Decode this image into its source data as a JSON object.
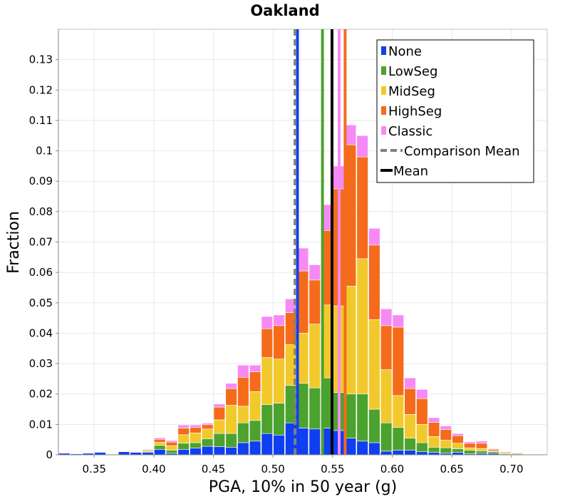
{
  "chart_data": {
    "type": "bar",
    "stacked": true,
    "title": "Oakland",
    "xlabel": "PGA, 10% in 50 year (g)",
    "ylabel": "Fraction",
    "xlim": [
      0.32,
      0.73
    ],
    "ylim": [
      0,
      0.14
    ],
    "x_ticks": [
      "0.35",
      "0.40",
      "0.45",
      "0.50",
      "0.55",
      "0.60",
      "0.65",
      "0.70"
    ],
    "y_ticks": [
      "0",
      "0.01",
      "0.02",
      "0.03",
      "0.04",
      "0.05",
      "0.06",
      "0.07",
      "0.08",
      "0.09",
      "0.1",
      "0.11",
      "0.12",
      "0.13"
    ],
    "grid": true,
    "legend_position": "top-right",
    "bin_width": 0.01,
    "bin_centers": [
      0.325,
      0.335,
      0.345,
      0.355,
      0.365,
      0.375,
      0.385,
      0.395,
      0.405,
      0.415,
      0.425,
      0.435,
      0.445,
      0.455,
      0.465,
      0.475,
      0.485,
      0.495,
      0.505,
      0.515,
      0.525,
      0.535,
      0.545,
      0.555,
      0.565,
      0.575,
      0.585,
      0.595,
      0.605,
      0.615,
      0.625,
      0.635,
      0.645,
      0.655,
      0.665,
      0.675,
      0.685,
      0.695,
      0.705,
      0.715,
      0.725
    ],
    "series": [
      {
        "name": "None",
        "color": "#0f3ff0",
        "values": [
          0.0005,
          0.0003,
          0.0005,
          0.0008,
          0.0002,
          0.001,
          0.0008,
          0.0008,
          0.0018,
          0.0005,
          0.0018,
          0.0022,
          0.0028,
          0.0027,
          0.0025,
          0.004,
          0.0045,
          0.007,
          0.0065,
          0.0105,
          0.0088,
          0.0085,
          0.0088,
          0.008,
          0.0055,
          0.0045,
          0.004,
          0.0012,
          0.0015,
          0.0015,
          0.001,
          0.0008,
          0.0005,
          0.0008,
          0.0003,
          0.0005,
          0.0005,
          0.0001,
          0.0001,
          0.0001,
          0.0001
        ]
      },
      {
        "name": "LowSeg",
        "color": "#4ca22e",
        "values": [
          0,
          0,
          0,
          0,
          0,
          0,
          0,
          0.0003,
          0.0013,
          0.001,
          0.002,
          0.0018,
          0.0025,
          0.0043,
          0.0045,
          0.0065,
          0.0068,
          0.0095,
          0.0105,
          0.0123,
          0.0147,
          0.0135,
          0.0165,
          0.0125,
          0.0145,
          0.0155,
          0.011,
          0.0093,
          0.0075,
          0.004,
          0.003,
          0.0017,
          0.0018,
          0.0012,
          0.0012,
          0.0008,
          0.0005,
          0.0003,
          0.0003,
          0.0001,
          0.0001
        ]
      },
      {
        "name": "MidSeg",
        "color": "#f2c92c",
        "values": [
          0,
          0,
          0,
          0,
          0,
          0,
          0,
          0.0004,
          0.001,
          0.0015,
          0.0028,
          0.0032,
          0.0032,
          0.0045,
          0.0093,
          0.0055,
          0.0095,
          0.0155,
          0.0145,
          0.0135,
          0.0165,
          0.021,
          0.024,
          0.0285,
          0.0355,
          0.0445,
          0.0295,
          0.0175,
          0.0105,
          0.0078,
          0.006,
          0.0035,
          0.0025,
          0.0018,
          0.0008,
          0.0008,
          0.0003,
          0.0002,
          0.0002,
          0.0001,
          0
        ]
      },
      {
        "name": "HighSeg",
        "color": "#f46c1b",
        "values": [
          0,
          0,
          0,
          0,
          0,
          0,
          0,
          0,
          0.001,
          0.0012,
          0.0022,
          0.0018,
          0.0014,
          0.0042,
          0.0055,
          0.0095,
          0.0065,
          0.0095,
          0.011,
          0.0105,
          0.0205,
          0.0145,
          0.0245,
          0.0385,
          0.0465,
          0.0335,
          0.0245,
          0.0145,
          0.0225,
          0.0085,
          0.0085,
          0.0047,
          0.0035,
          0.0025,
          0.0015,
          0.0017,
          0.0005,
          0.0003,
          0.0001,
          0.0001,
          0
        ]
      },
      {
        "name": "Classic",
        "color": "#f68af5",
        "values": [
          0,
          0,
          0,
          0,
          0,
          0,
          0,
          0.0003,
          0.0005,
          0.0005,
          0.001,
          0.0008,
          0.0005,
          0.001,
          0.0017,
          0.004,
          0.0022,
          0.004,
          0.0035,
          0.0045,
          0.0075,
          0.005,
          0.0085,
          0.0075,
          0.0065,
          0.007,
          0.0055,
          0.0055,
          0.004,
          0.0035,
          0.003,
          0.0015,
          0.0012,
          0.0007,
          0.0005,
          0.0007,
          0.0002,
          0.0001,
          0.0001,
          0,
          0
        ]
      }
    ],
    "vertical_lines": [
      {
        "series": "None",
        "x": 0.5205,
        "color": "#0f3ff0",
        "style": "solid"
      },
      {
        "series": "LowSeg",
        "x": 0.5415,
        "color": "#4ca22e",
        "style": "solid"
      },
      {
        "series": "MidSeg",
        "x": 0.5495,
        "color": "#f2c92c",
        "style": "solid"
      },
      {
        "series": "HighSeg",
        "x": 0.5605,
        "color": "#f46c1b",
        "style": "solid"
      },
      {
        "series": "Classic",
        "x": 0.5555,
        "color": "#f68af5",
        "style": "solid"
      },
      {
        "series": "Comparison Mean",
        "x": 0.5185,
        "color": "#808080",
        "style": "dashed"
      },
      {
        "series": "Mean",
        "x": 0.5495,
        "color": "#000000",
        "style": "solid"
      }
    ],
    "legend": [
      {
        "label": "None",
        "color": "#0f3ff0",
        "kind": "box"
      },
      {
        "label": "LowSeg",
        "color": "#4ca22e",
        "kind": "box"
      },
      {
        "label": "MidSeg",
        "color": "#f2c92c",
        "kind": "box"
      },
      {
        "label": "HighSeg",
        "color": "#f46c1b",
        "kind": "box"
      },
      {
        "label": "Classic",
        "color": "#f68af5",
        "kind": "box"
      },
      {
        "label": "Comparison Mean",
        "color": "#808080",
        "kind": "dashed"
      },
      {
        "label": "Mean",
        "color": "#000000",
        "kind": "line"
      }
    ]
  }
}
